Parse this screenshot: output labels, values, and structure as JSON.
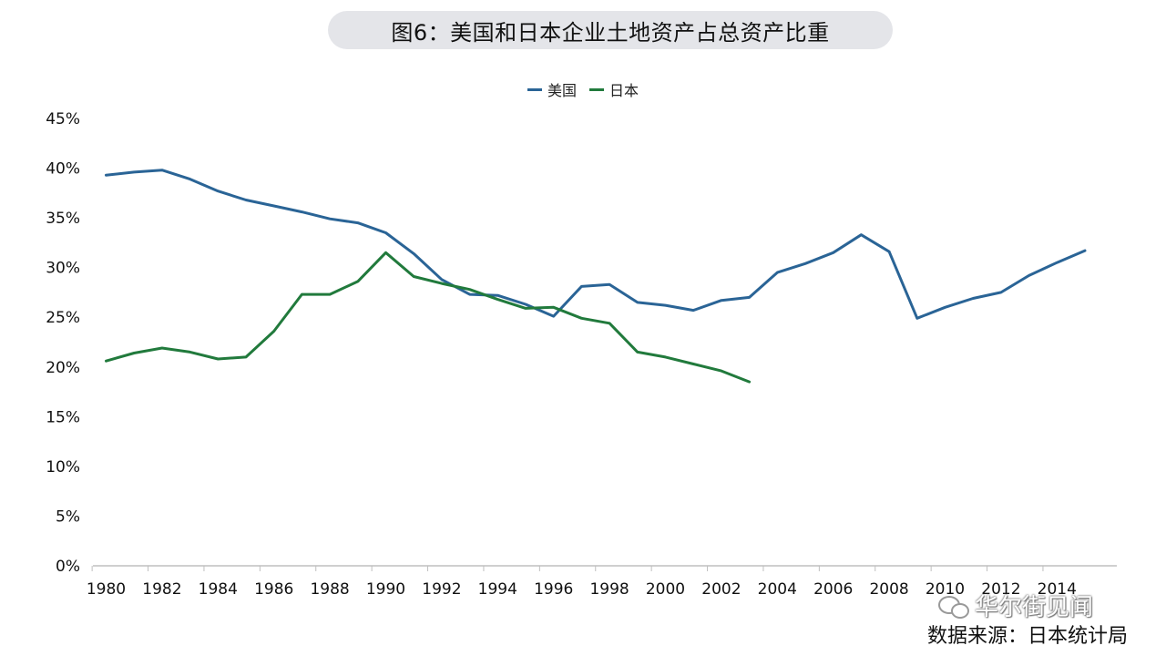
{
  "title": "图6：美国和日本企业土地资产占总资产比重",
  "source": "数据来源：日本统计局",
  "watermark": "华尔街见闻",
  "colors": {
    "us": "#2a6496",
    "japan": "#217a3c",
    "axis": "#bfbfbf"
  },
  "chart_data": {
    "type": "line",
    "title": "图6：美国和日本企业土地资产占总资产比重",
    "xlabel": "",
    "ylabel": "",
    "x_tick_labels": [
      "1980",
      "1982",
      "1984",
      "1986",
      "1988",
      "1990",
      "1992",
      "1994",
      "1996",
      "1998",
      "2000",
      "2002",
      "2004",
      "2006",
      "2008",
      "2010",
      "2012",
      "2014"
    ],
    "y_tick_labels": [
      "0%",
      "5%",
      "10%",
      "15%",
      "20%",
      "25%",
      "30%",
      "35%",
      "40%",
      "45%"
    ],
    "xlim": [
      1980,
      2015
    ],
    "ylim": [
      0,
      45
    ],
    "legend_position": "top-center",
    "grid": false,
    "series": [
      {
        "name": "美国",
        "color": "#2a6496",
        "x": [
          1980,
          1981,
          1982,
          1983,
          1984,
          1985,
          1986,
          1987,
          1988,
          1989,
          1990,
          1991,
          1992,
          1993,
          1994,
          1995,
          1996,
          1997,
          1998,
          1999,
          2000,
          2001,
          2002,
          2003,
          2004,
          2005,
          2006,
          2007,
          2008,
          2009,
          2010,
          2011,
          2012,
          2013,
          2014,
          2015
        ],
        "y": [
          39.3,
          39.6,
          39.8,
          38.9,
          37.7,
          36.8,
          36.2,
          35.6,
          34.9,
          34.5,
          33.5,
          31.4,
          28.8,
          27.3,
          27.2,
          26.3,
          25.1,
          28.1,
          28.3,
          26.5,
          26.2,
          25.7,
          26.7,
          27.0,
          29.5,
          30.4,
          31.5,
          33.3,
          31.6,
          24.9,
          26.0,
          26.9,
          27.5,
          29.2,
          30.5,
          31.7
        ]
      },
      {
        "name": "日本",
        "color": "#217a3c",
        "x": [
          1980,
          1981,
          1982,
          1983,
          1984,
          1985,
          1986,
          1987,
          1988,
          1989,
          1990,
          1991,
          1992,
          1993,
          1994,
          1995,
          1996,
          1997,
          1998,
          1999,
          2000,
          2001,
          2002,
          2003
        ],
        "y": [
          20.6,
          21.4,
          21.9,
          21.5,
          20.8,
          21.0,
          23.6,
          27.3,
          27.3,
          28.6,
          31.5,
          29.1,
          28.4,
          27.8,
          26.8,
          25.9,
          26.0,
          24.9,
          24.4,
          21.5,
          21.0,
          20.3,
          19.6,
          18.5
        ]
      }
    ]
  }
}
